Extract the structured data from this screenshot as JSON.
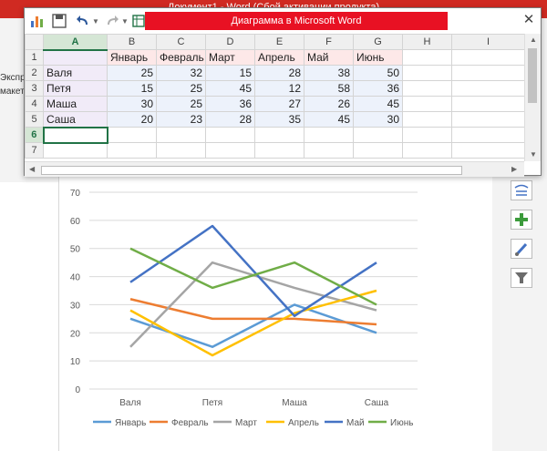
{
  "word": {
    "title": "Документ1 -  Word (Сбой активации продукта)",
    "side_fragments": [
      "Экспресс",
      "макет"
    ]
  },
  "excel": {
    "title": "Диаграмма в Microsoft Word",
    "close_label": "✕",
    "toolbar_icons": [
      "chart-icon",
      "save-icon",
      "undo-icon",
      "redo-icon",
      "edit-data-icon"
    ],
    "column_letters": [
      "A",
      "B",
      "C",
      "D",
      "E",
      "F",
      "G",
      "H",
      "I"
    ],
    "row_numbers": [
      "1",
      "2",
      "3",
      "4",
      "5",
      "6",
      "7"
    ],
    "header_row": [
      "",
      "Январь",
      "Февраль",
      "Март",
      "Апрель",
      "Май",
      "Июнь"
    ],
    "rows": [
      {
        "name": "Валя",
        "values": [
          "25",
          "32",
          "15",
          "28",
          "38",
          "50"
        ]
      },
      {
        "name": "Петя",
        "values": [
          "15",
          "25",
          "45",
          "12",
          "58",
          "36"
        ]
      },
      {
        "name": "Маша",
        "values": [
          "30",
          "25",
          "36",
          "27",
          "26",
          "45"
        ]
      },
      {
        "name": "Саша",
        "values": [
          "20",
          "23",
          "28",
          "35",
          "45",
          "30"
        ]
      }
    ]
  },
  "chart_tools": [
    "layout-options-icon",
    "add-element-icon",
    "style-brush-icon",
    "filter-icon"
  ],
  "chart_data": {
    "type": "line",
    "categories": [
      "Валя",
      "Петя",
      "Маша",
      "Саша"
    ],
    "ylim": [
      0,
      70
    ],
    "yticks": [
      0,
      10,
      20,
      30,
      40,
      50,
      60,
      70
    ],
    "grid": true,
    "legend": "bottom",
    "series": [
      {
        "name": "Январь",
        "color": "#5b9bd5",
        "values": [
          25,
          15,
          30,
          20
        ]
      },
      {
        "name": "Февраль",
        "color": "#ed7d31",
        "values": [
          32,
          25,
          25,
          23
        ]
      },
      {
        "name": "Март",
        "color": "#a5a5a5",
        "values": [
          15,
          45,
          36,
          28
        ]
      },
      {
        "name": "Апрель",
        "color": "#ffc000",
        "values": [
          28,
          12,
          27,
          35
        ]
      },
      {
        "name": "Май",
        "color": "#4472c4",
        "values": [
          38,
          58,
          26,
          45
        ]
      },
      {
        "name": "Июнь",
        "color": "#70ad47",
        "values": [
          50,
          36,
          45,
          30
        ]
      }
    ]
  }
}
